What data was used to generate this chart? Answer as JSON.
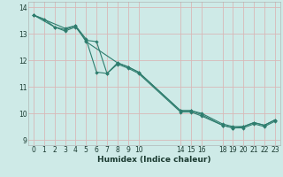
{
  "xlabel": "Humidex (Indice chaleur)",
  "background_color": "#ceeae7",
  "grid_color": "#d8b8b8",
  "line_color": "#2e7d6e",
  "xlim": [
    -0.5,
    23.5
  ],
  "ylim": [
    8.8,
    14.2
  ],
  "xticks": [
    0,
    1,
    2,
    3,
    4,
    5,
    6,
    7,
    8,
    9,
    10,
    14,
    15,
    16,
    18,
    19,
    20,
    21,
    22,
    23
  ],
  "yticks": [
    9,
    10,
    11,
    12,
    13,
    14
  ],
  "series": [
    {
      "x": [
        0,
        1,
        2,
        3,
        4,
        5,
        6,
        7,
        8,
        9,
        10,
        14,
        15,
        16,
        18,
        19,
        20,
        21,
        22,
        23
      ],
      "y": [
        13.7,
        13.55,
        13.25,
        13.15,
        13.3,
        12.8,
        11.55,
        11.5,
        11.9,
        11.75,
        11.55,
        10.1,
        10.1,
        10.0,
        9.6,
        9.5,
        9.5,
        9.65,
        9.55,
        9.75
      ]
    },
    {
      "x": [
        0,
        3,
        4,
        5,
        8,
        9,
        10,
        14,
        15,
        16,
        18,
        19,
        20,
        21,
        22,
        23
      ],
      "y": [
        13.7,
        13.2,
        13.3,
        12.7,
        11.9,
        11.75,
        11.55,
        10.1,
        10.1,
        9.95,
        9.55,
        9.45,
        9.5,
        9.65,
        9.55,
        9.75
      ]
    },
    {
      "x": [
        0,
        2,
        3,
        4,
        5,
        6,
        7,
        8,
        9,
        10,
        14,
        15,
        16,
        18,
        19,
        20,
        21,
        22,
        23
      ],
      "y": [
        13.7,
        13.25,
        13.1,
        13.25,
        12.75,
        12.7,
        11.5,
        11.85,
        11.7,
        11.5,
        10.05,
        10.05,
        9.9,
        9.55,
        9.45,
        9.45,
        9.6,
        9.5,
        9.7
      ]
    }
  ]
}
